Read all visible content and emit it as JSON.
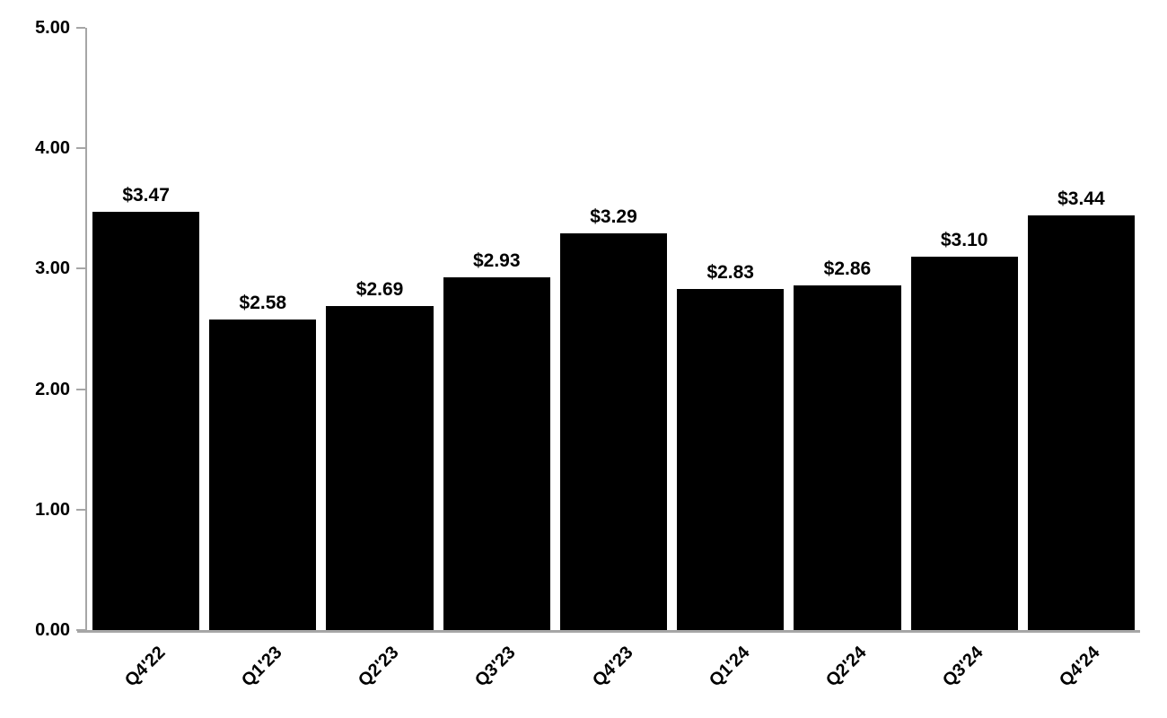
{
  "chart_data": {
    "type": "bar",
    "title": "",
    "xlabel": "",
    "ylabel": "",
    "categories": [
      "Q4'22",
      "Q1'23",
      "Q2'23",
      "Q3'23",
      "Q4'23",
      "Q1'24",
      "Q2'24",
      "Q3'24",
      "Q4'24"
    ],
    "values": [
      3.47,
      2.58,
      2.69,
      2.93,
      3.29,
      2.83,
      2.86,
      3.1,
      3.44
    ],
    "data_labels": [
      "$3.47",
      "$2.58",
      "$2.69",
      "$2.93",
      "$3.29",
      "$2.83",
      "$2.86",
      "$3.10",
      "$3.44"
    ],
    "y_ticks": [
      "0.00",
      "1.00",
      "2.00",
      "3.00",
      "4.00",
      "5.00"
    ],
    "y_tick_values": [
      0,
      1,
      2,
      3,
      4,
      5
    ],
    "ylim": [
      0,
      5
    ],
    "grid": false,
    "legend": false,
    "bar_color": "#000000",
    "axis_color": "#a6a6a6",
    "text_color": "#000000",
    "background_color": "#ffffff"
  }
}
